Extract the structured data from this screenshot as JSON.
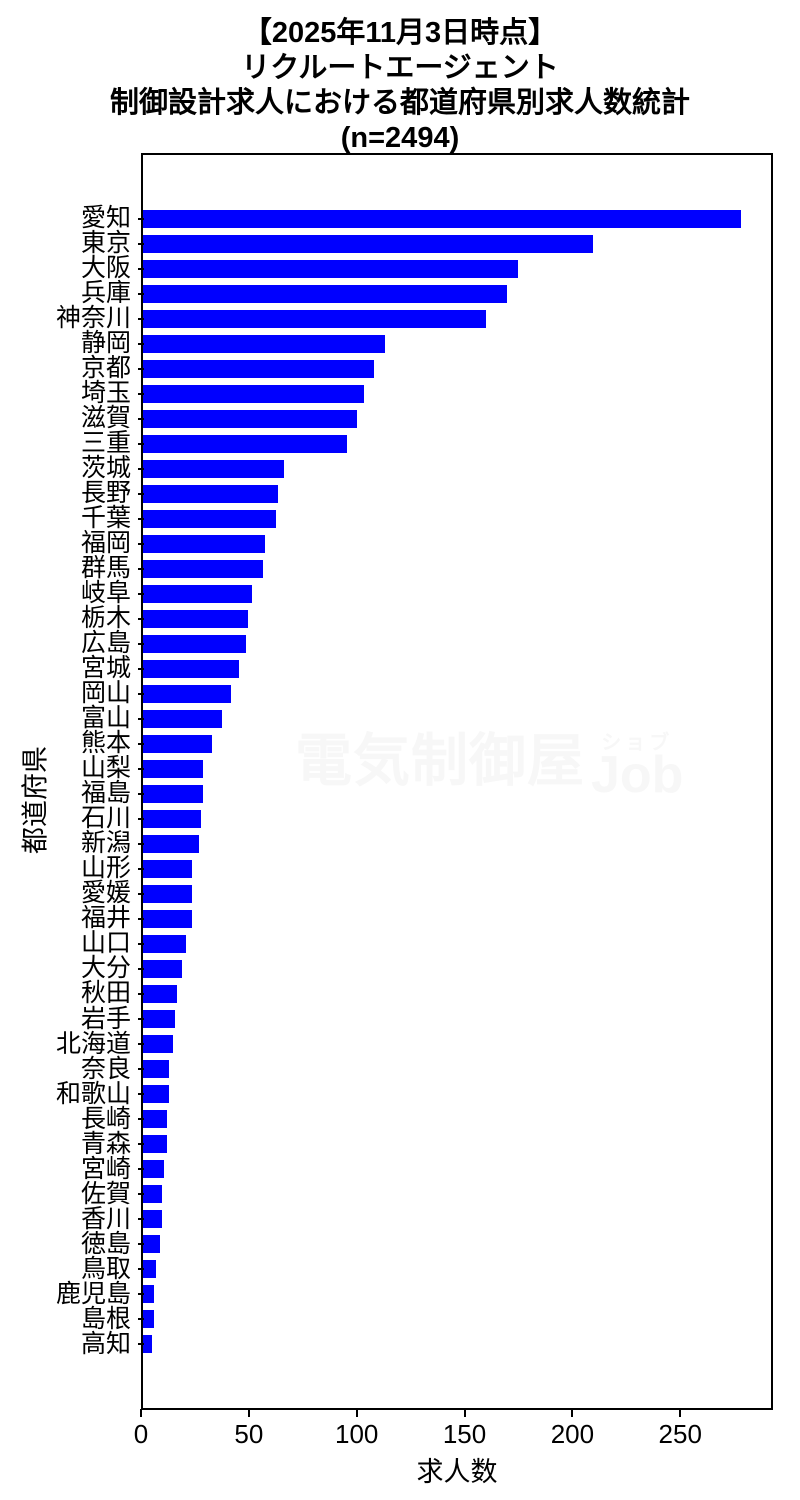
{
  "colors": {
    "bar": "#0000ff",
    "axis": "#000000",
    "background": "#ffffff",
    "watermark": "#f7f7f7"
  },
  "watermark": {
    "kanji": "電気制御屋",
    "ruby": "ショブ",
    "latin": "Job"
  },
  "chart_data": {
    "type": "bar",
    "orientation": "horizontal",
    "sort": "descending",
    "grid": false,
    "legend": "none",
    "title_lines": [
      "【2025年11月3日時点】",
      "リクルートエージェント",
      "制御設計求人における都道府県別求人数統計",
      "(n=2494)"
    ],
    "n_total": 2494,
    "xlabel": "求人数",
    "ylabel": "都道府県",
    "xticks": [
      0,
      50,
      100,
      150,
      200,
      250
    ],
    "xlim": [
      0,
      293
    ],
    "bar_color": "#0000ff",
    "categories": [
      "愛知",
      "東京",
      "大阪",
      "兵庫",
      "神奈川",
      "静岡",
      "京都",
      "埼玉",
      "滋賀",
      "三重",
      "茨城",
      "長野",
      "千葉",
      "福岡",
      "群馬",
      "岐阜",
      "栃木",
      "広島",
      "宮城",
      "岡山",
      "富山",
      "熊本",
      "山梨",
      "福島",
      "石川",
      "新潟",
      "山形",
      "愛媛",
      "福井",
      "山口",
      "大分",
      "秋田",
      "岩手",
      "北海道",
      "奈良",
      "和歌山",
      "長崎",
      "青森",
      "宮崎",
      "佐賀",
      "香川",
      "徳島",
      "鳥取",
      "鹿児島",
      "島根",
      "高知"
    ],
    "values": [
      279,
      210,
      175,
      170,
      160,
      113,
      108,
      103,
      100,
      95,
      66,
      63,
      62,
      57,
      56,
      51,
      49,
      48,
      45,
      41,
      37,
      32,
      28,
      28,
      27,
      26,
      23,
      23,
      23,
      20,
      18,
      16,
      15,
      14,
      12,
      12,
      11,
      11,
      10,
      9,
      9,
      8,
      6,
      5,
      5,
      4
    ]
  }
}
